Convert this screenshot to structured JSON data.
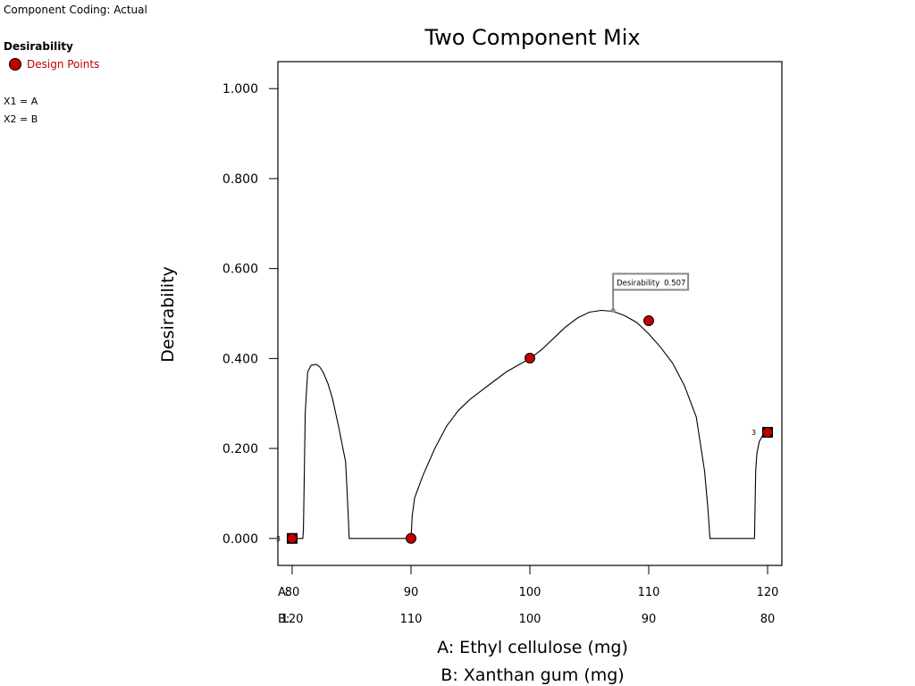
{
  "component_coding": "Component Coding: Actual",
  "legend": {
    "title": "Desirability",
    "item": "Design Points",
    "marker_color": "#c00000"
  },
  "mapping": [
    "X1 = A",
    "X2 = B"
  ],
  "chart_data": {
    "type": "line",
    "title": "Two Component Mix",
    "ylabel": "Desirability",
    "xlabel_a": "A: Ethyl cellulose (mg)",
    "xlabel_b": "B: Xanthan gum (mg)",
    "ylim": [
      -0.06,
      1.06
    ],
    "xlim": [
      78.8,
      121.2
    ],
    "yticks": [
      "0.000",
      "0.200",
      "0.400",
      "0.600",
      "0.800",
      "1.000"
    ],
    "ytick_values": [
      0,
      0.2,
      0.4,
      0.6,
      0.8,
      1.0
    ],
    "x_row_a_prefix": "A:",
    "x_row_b_prefix": "B:",
    "xticks_a": [
      "80",
      "90",
      "100",
      "110",
      "120"
    ],
    "xticks_b": [
      "120",
      "110",
      "100",
      "90",
      "80"
    ],
    "xtick_values": [
      80,
      90,
      100,
      110,
      120
    ],
    "series": [
      {
        "x": [
          80,
          80.9,
          80.95,
          81.1,
          81.3,
          81.6,
          82,
          82.3,
          82.6,
          83,
          83.4,
          83.9,
          84.5,
          84.7,
          84.8,
          84.9,
          85,
          86,
          87,
          88,
          89,
          89.9,
          90,
          90.1,
          90.3,
          91,
          92,
          93,
          94,
          95,
          96,
          97,
          98,
          99,
          100,
          101,
          102,
          103,
          104,
          105,
          106,
          107,
          108,
          109,
          110,
          111,
          112,
          113,
          114,
          114.7,
          115,
          115.15,
          115.3,
          115.4,
          116,
          117,
          118,
          118.9,
          119.0,
          119.1,
          119.3,
          119.6,
          120
        ],
        "y": [
          0,
          0,
          0.02,
          0.28,
          0.37,
          0.385,
          0.387,
          0.382,
          0.37,
          0.345,
          0.31,
          0.25,
          0.17,
          0.06,
          0.0,
          0.0,
          0.0,
          0.0,
          0.0,
          0.0,
          0.0,
          0.0,
          0.0,
          0.05,
          0.09,
          0.14,
          0.2,
          0.25,
          0.285,
          0.31,
          0.33,
          0.35,
          0.37,
          0.385,
          0.4,
          0.42,
          0.445,
          0.47,
          0.49,
          0.503,
          0.507,
          0.505,
          0.495,
          0.48,
          0.455,
          0.425,
          0.39,
          0.34,
          0.27,
          0.15,
          0.06,
          0.0,
          0.0,
          0.0,
          0.0,
          0.0,
          0.0,
          0.0,
          0.15,
          0.19,
          0.215,
          0.23,
          0.236
        ]
      }
    ],
    "design_points": [
      {
        "x": 80,
        "y": 0.0,
        "label": "3",
        "square": true
      },
      {
        "x": 90,
        "y": 0.0,
        "label": "",
        "square": false
      },
      {
        "x": 100,
        "y": 0.401,
        "label": "",
        "square": false
      },
      {
        "x": 110,
        "y": 0.484,
        "label": "",
        "square": false
      },
      {
        "x": 120,
        "y": 0.236,
        "label": "3",
        "square": true
      }
    ],
    "annotation": {
      "x": 107,
      "y": 0.507,
      "label": "Desirability",
      "value": "0.507"
    }
  }
}
